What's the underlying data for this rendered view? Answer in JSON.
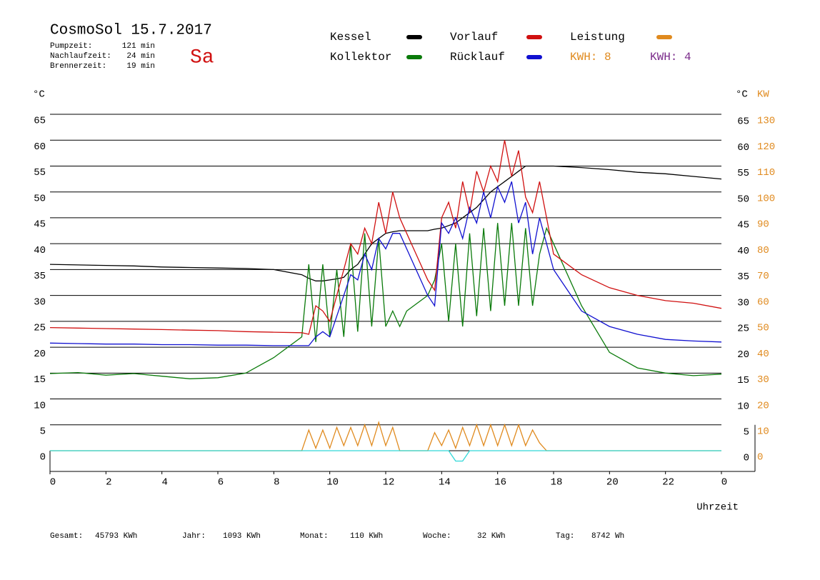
{
  "header": {
    "title": "CosmoSol 15.7.2017",
    "weekday": "Sa",
    "stats": [
      {
        "label": "Pumpzeit:",
        "value": "121 min"
      },
      {
        "label": "Nachlaufzeit:",
        "value": "24 min"
      },
      {
        "label": "Brennerzeit:",
        "value": "19 min"
      }
    ],
    "kwh_labels": [
      {
        "text": "KWH: 8",
        "color": "#e08a1e"
      },
      {
        "text": "KWH: 4",
        "color": "#7a2a8a"
      }
    ]
  },
  "chart_data": {
    "type": "line",
    "y_unit_left": "°C",
    "y_unit_right": "°C",
    "y2_unit": "KW",
    "x_label": "Uhrzeit",
    "x": [
      0,
      1,
      2,
      3,
      4,
      5,
      6,
      7,
      8,
      9,
      9.25,
      9.5,
      9.75,
      10,
      10.25,
      10.5,
      10.75,
      11,
      11.25,
      11.5,
      11.75,
      12,
      12.25,
      12.5,
      12.75,
      13,
      13.25,
      13.5,
      13.75,
      14,
      14.25,
      14.5,
      14.75,
      15,
      15.25,
      15.5,
      15.75,
      16,
      16.25,
      16.5,
      16.75,
      17,
      17.25,
      17.5,
      17.75,
      18,
      19,
      20,
      21,
      22,
      23,
      24
    ],
    "xlim": [
      0,
      25.2
    ],
    "xticks": [
      0,
      2,
      4,
      6,
      8,
      10,
      12,
      14,
      16,
      18,
      20,
      22,
      {
        "value": 24,
        "label": "0"
      }
    ],
    "ylim": [
      -4,
      65
    ],
    "yticks": [
      0,
      5,
      10,
      15,
      20,
      25,
      30,
      35,
      40,
      45,
      50,
      55,
      60,
      65
    ],
    "y2lim": [
      -8,
      130
    ],
    "y2ticks": [
      0,
      10,
      20,
      30,
      40,
      50,
      60,
      70,
      80,
      90,
      100,
      110,
      120,
      130
    ],
    "grid": true,
    "series": [
      {
        "name": "Kessel",
        "color": "#000000",
        "values": [
          36,
          35.9,
          35.8,
          35.7,
          35.5,
          35.4,
          35.3,
          35.2,
          35,
          34,
          33.3,
          32.8,
          32.8,
          33,
          33.2,
          33.5,
          35,
          36,
          38,
          40,
          41,
          42,
          42.3,
          42.5,
          42.5,
          42.5,
          42.5,
          42.5,
          42.8,
          43,
          43.5,
          44,
          45,
          46,
          47,
          48.5,
          50,
          51,
          52,
          53,
          54,
          55,
          55,
          55,
          55,
          55,
          54.7,
          54.3,
          53.8,
          53.5,
          53,
          52.5
        ]
      },
      {
        "name": "Kollektor",
        "color": "#0a7a0a",
        "values": [
          14.9,
          15.1,
          14.6,
          14.9,
          14.4,
          13.9,
          14.1,
          15,
          18,
          22,
          36,
          21,
          36,
          22,
          35,
          22,
          40,
          23,
          42,
          24,
          41,
          24,
          27,
          24,
          27,
          28,
          29,
          30,
          33,
          40,
          25,
          40,
          24,
          42,
          26,
          43,
          27,
          44,
          28,
          44,
          28,
          43,
          28,
          38,
          43,
          40,
          28,
          19,
          16,
          15,
          14.5,
          14.8
        ]
      },
      {
        "name": "Vorlauf",
        "color": "#d01010",
        "values": [
          23.8,
          23.7,
          23.6,
          23.5,
          23.4,
          23.3,
          23.2,
          23,
          22.9,
          22.8,
          22.5,
          28,
          27,
          25,
          30,
          35,
          40,
          38,
          43,
          40,
          48,
          42,
          50,
          45,
          42,
          39,
          36,
          33,
          31,
          45,
          48,
          43,
          52,
          46,
          54,
          50,
          55,
          52,
          60,
          53,
          58,
          49,
          46,
          52,
          45,
          38,
          34,
          31.5,
          30,
          29,
          28.5,
          27.5
        ]
      },
      {
        "name": "Rücklauf",
        "color": "#1010d0",
        "values": [
          20.8,
          20.7,
          20.6,
          20.6,
          20.5,
          20.5,
          20.4,
          20.4,
          20.3,
          20.3,
          20.3,
          22,
          23,
          22,
          26,
          30,
          34,
          33,
          38,
          35,
          41,
          39,
          42,
          42,
          39,
          36,
          33,
          30,
          28,
          44,
          42,
          45,
          41,
          47,
          44,
          50,
          45,
          51,
          48,
          52,
          44,
          48,
          38,
          45,
          40,
          35,
          27,
          24,
          22.5,
          21.5,
          21.2,
          21
        ]
      },
      {
        "name": "Leistung",
        "color": "#e08a1e",
        "axis": "y2",
        "values": [
          0,
          0,
          0,
          0,
          0,
          0,
          0,
          0,
          0,
          0,
          8,
          1,
          8,
          1,
          9,
          2,
          9,
          2,
          10,
          2,
          11,
          2,
          9,
          0,
          0,
          0,
          0,
          0,
          7,
          2,
          8,
          1,
          9,
          2,
          10,
          2,
          10,
          2,
          10,
          2,
          10,
          2,
          8,
          3,
          0,
          0,
          0,
          0,
          0,
          0,
          0,
          0
        ]
      },
      {
        "color": "#30d8d8",
        "values": [
          0,
          0,
          0,
          0,
          0,
          0,
          0,
          0,
          0,
          0,
          0,
          0,
          0,
          0,
          0,
          0,
          0,
          0,
          0,
          0,
          0,
          0,
          0,
          0,
          0,
          0,
          0,
          0,
          0,
          0,
          0,
          -2,
          -2,
          0,
          0,
          0,
          0,
          0,
          0,
          0,
          0,
          0,
          0,
          0,
          0,
          0,
          0,
          0,
          0,
          0,
          0,
          0
        ]
      }
    ]
  },
  "footer": [
    {
      "label": "Gesamt:",
      "value": "45793 KWh"
    },
    {
      "label": "Jahr:",
      "value": "1093 KWh"
    },
    {
      "label": "Monat:",
      "value": "110 KWh"
    },
    {
      "label": "Woche:",
      "value": "32 KWh"
    },
    {
      "label": "Tag:",
      "value": "8742 Wh"
    }
  ]
}
